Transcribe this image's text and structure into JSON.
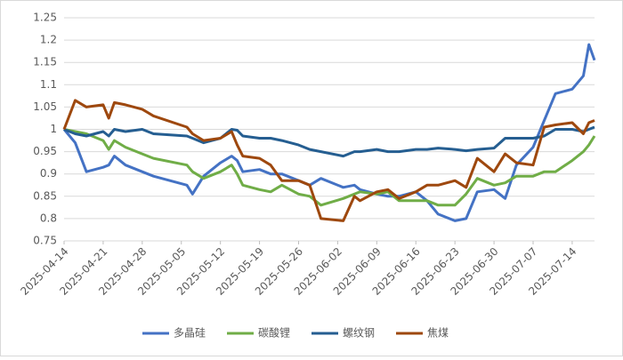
{
  "chart_data": {
    "type": "line",
    "x": [
      "2025-04-14",
      "2025-04-16",
      "2025-04-18",
      "2025-04-21",
      "2025-04-22",
      "2025-04-23",
      "2025-04-25",
      "2025-04-28",
      "2025-04-30",
      "2025-05-06",
      "2025-05-07",
      "2025-05-09",
      "2025-05-12",
      "2025-05-14",
      "2025-05-15",
      "2025-05-16",
      "2025-05-19",
      "2025-05-21",
      "2025-05-23",
      "2025-05-26",
      "2025-05-28",
      "2025-05-30",
      "2025-06-03",
      "2025-06-05",
      "2025-06-06",
      "2025-06-09",
      "2025-06-11",
      "2025-06-13",
      "2025-06-16",
      "2025-06-18",
      "2025-06-20",
      "2025-06-23",
      "2025-06-25",
      "2025-06-27",
      "2025-06-30",
      "2025-07-02",
      "2025-07-04",
      "2025-07-07",
      "2025-07-09",
      "2025-07-11",
      "2025-07-14",
      "2025-07-16",
      "2025-07-17",
      "2025-07-18"
    ],
    "series": [
      {
        "name": "多晶硅",
        "color": "#4472c4",
        "values": [
          1.0,
          0.97,
          0.905,
          0.915,
          0.92,
          0.94,
          0.92,
          0.905,
          0.895,
          0.875,
          0.855,
          0.895,
          0.925,
          0.94,
          0.93,
          0.905,
          0.91,
          0.9,
          0.9,
          0.885,
          0.875,
          0.89,
          0.87,
          0.875,
          0.865,
          0.855,
          0.85,
          0.85,
          0.86,
          0.84,
          0.81,
          0.795,
          0.8,
          0.86,
          0.865,
          0.845,
          0.92,
          0.96,
          1.02,
          1.08,
          1.09,
          1.12,
          1.19,
          1.155
        ]
      },
      {
        "name": "碳酸锂",
        "color": "#70ad47",
        "values": [
          1.0,
          0.995,
          0.99,
          0.975,
          0.955,
          0.975,
          0.96,
          0.945,
          0.935,
          0.92,
          0.905,
          0.89,
          0.905,
          0.92,
          0.9,
          0.875,
          0.865,
          0.86,
          0.875,
          0.855,
          0.85,
          0.83,
          0.845,
          0.855,
          0.86,
          0.855,
          0.86,
          0.84,
          0.84,
          0.84,
          0.83,
          0.83,
          0.855,
          0.89,
          0.875,
          0.88,
          0.895,
          0.895,
          0.905,
          0.905,
          0.93,
          0.95,
          0.965,
          0.985
        ]
      },
      {
        "name": "螺纹钢",
        "color": "#255e91",
        "values": [
          1.0,
          0.99,
          0.985,
          0.995,
          0.985,
          1.0,
          0.995,
          1.0,
          0.99,
          0.985,
          0.98,
          0.97,
          0.98,
          1.0,
          0.998,
          0.985,
          0.98,
          0.98,
          0.975,
          0.965,
          0.955,
          0.95,
          0.94,
          0.95,
          0.95,
          0.955,
          0.95,
          0.95,
          0.955,
          0.955,
          0.958,
          0.955,
          0.952,
          0.955,
          0.958,
          0.98,
          0.98,
          0.98,
          0.985,
          1.0,
          1.0,
          0.995,
          1.0,
          1.005
        ]
      },
      {
        "name": "焦煤",
        "color": "#9e480e",
        "values": [
          1.0,
          1.065,
          1.05,
          1.055,
          1.025,
          1.06,
          1.055,
          1.045,
          1.03,
          1.005,
          0.99,
          0.975,
          0.98,
          0.995,
          0.965,
          0.94,
          0.935,
          0.92,
          0.885,
          0.885,
          0.875,
          0.8,
          0.795,
          0.85,
          0.84,
          0.86,
          0.865,
          0.845,
          0.86,
          0.875,
          0.875,
          0.885,
          0.87,
          0.935,
          0.905,
          0.945,
          0.925,
          0.92,
          1.005,
          1.01,
          1.015,
          0.99,
          1.015,
          1.02
        ]
      }
    ],
    "xlim": [
      "2025-04-14",
      "2025-07-18"
    ],
    "xticks": [
      "2025-04-14",
      "2025-04-21",
      "2025-04-28",
      "2025-05-05",
      "2025-05-12",
      "2025-05-19",
      "2025-05-26",
      "2025-06-02",
      "2025-06-09",
      "2025-06-16",
      "2025-06-23",
      "2025-06-30",
      "2025-07-07",
      "2025-07-14"
    ],
    "ylim": [
      0.75,
      1.25
    ],
    "yticks": [
      0.75,
      0.8,
      0.85,
      0.9,
      0.95,
      1,
      1.05,
      1.1,
      1.15,
      1.2,
      1.25
    ],
    "legend": "bottom"
  }
}
